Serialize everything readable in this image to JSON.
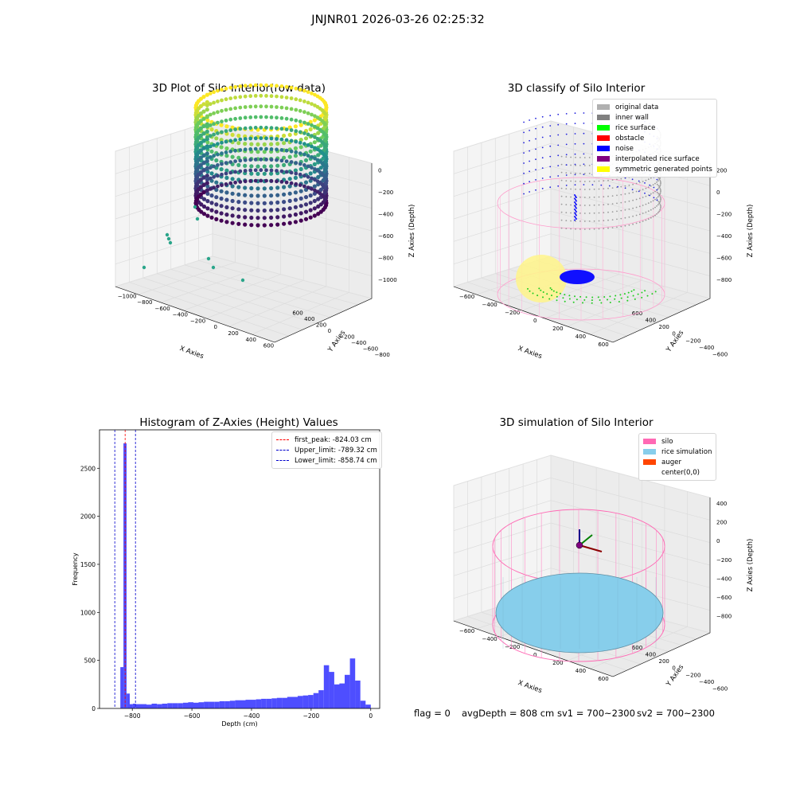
{
  "suptitle": "JNJNR01 2026-03-26 02:25:32",
  "panels": {
    "raw": {
      "title": "3D Plot of Silo Interior(row data)",
      "xlabel": "X Axies",
      "ylabel": "Y Axies",
      "zlabel": "Z Axies (Depth)",
      "xticks": [
        "−1000",
        "−800",
        "−600",
        "−400",
        "−200",
        "0",
        "200",
        "400",
        "600"
      ],
      "yticks": [
        "−800",
        "−600",
        "−400",
        "−200",
        "0",
        "200",
        "400",
        "600"
      ],
      "zticks": [
        "0",
        "−200",
        "−400",
        "−600",
        "−800",
        "−1000"
      ]
    },
    "classify": {
      "title": "3D classify of Silo Interior",
      "xlabel": "X Axies",
      "ylabel": "Y Axies",
      "zlabel": "Z Axies (Depth)",
      "xticks": [
        "−600",
        "−400",
        "−200",
        "0",
        "200",
        "400",
        "600"
      ],
      "yticks": [
        "−600",
        "−400",
        "−200",
        "0",
        "200",
        "400",
        "600"
      ],
      "zticks": [
        "200",
        "0",
        "−200",
        "−400",
        "−600",
        "−800"
      ],
      "legend": [
        {
          "label": "original data",
          "color": "#b0b0b0"
        },
        {
          "label": "inner wall",
          "color": "#808080"
        },
        {
          "label": "rice surface",
          "color": "#00ff00"
        },
        {
          "label": "obstacle",
          "color": "#ff0000"
        },
        {
          "label": "noise",
          "color": "#0000ff"
        },
        {
          "label": "interpolated rice surface",
          "color": "#800080"
        },
        {
          "label": "symmetric generated points",
          "color": "#ffff00"
        }
      ]
    },
    "histogram": {
      "title": "Histogram of Z-Axies (Height) Values",
      "xlabel": "Depth (cm)",
      "ylabel": "Frequency",
      "legend": [
        {
          "label": "first_peak: -824.03 cm",
          "color": "#ff0000"
        },
        {
          "label": "Upper_limit: -789.32 cm",
          "color": "#0000cc"
        },
        {
          "label": "Lower_limit: -858.74 cm",
          "color": "#0000cc"
        }
      ]
    },
    "simulation": {
      "title": "3D simulation of Silo Interior",
      "xlabel": "X Axies",
      "ylabel": "Y Axies",
      "zlabel": "Z Axies (Depth)",
      "xticks": [
        "−600",
        "−400",
        "−200",
        "0",
        "200",
        "400",
        "600"
      ],
      "yticks": [
        "−600",
        "−400",
        "−200",
        "0",
        "200",
        "400",
        "600"
      ],
      "zticks": [
        "400",
        "200",
        "0",
        "−200",
        "−400",
        "−600",
        "−800"
      ],
      "legend": [
        {
          "label": "silo",
          "color": "#ff69b4"
        },
        {
          "label": "rice simulation",
          "color": "#87ceeb"
        },
        {
          "label": "auger",
          "color": "#ff4500"
        },
        {
          "label": "center(0,0)",
          "color": ""
        }
      ]
    }
  },
  "footer": {
    "flag": "flag = 0",
    "avg_depth": "avgDepth = 808 cm",
    "sv1": "sv1 = 700~2300",
    "sv2": "sv2 = 700~2300"
  },
  "chart_data": [
    {
      "type": "scatter",
      "title": "3D Plot of Silo Interior(row data)",
      "xlabel": "X Axies",
      "ylabel": "Y Axies",
      "zlabel": "Z Axies (Depth)",
      "xlim": [
        -1000,
        600
      ],
      "ylim": [
        -800,
        600
      ],
      "zlim": [
        -1100,
        0
      ],
      "colormap": "viridis",
      "description_of_points": "cylindrical silo wall point cloud, radius ~700, depth 0 to ~-1050"
    },
    {
      "type": "scatter",
      "title": "3D classify of Silo Interior",
      "xlim": [
        -650,
        650
      ],
      "ylim": [
        -650,
        650
      ],
      "zlim": [
        -900,
        250
      ],
      "series": [
        {
          "name": "original data"
        },
        {
          "name": "inner wall"
        },
        {
          "name": "rice surface"
        },
        {
          "name": "obstacle"
        },
        {
          "name": "noise"
        },
        {
          "name": "interpolated rice surface"
        },
        {
          "name": "symmetric generated points"
        }
      ]
    },
    {
      "type": "bar",
      "title": "Histogram of Z-Axies (Height) Values",
      "xlabel": "Depth (cm)",
      "ylabel": "Frequency",
      "xlim": [
        -910,
        30
      ],
      "ylim": [
        0,
        2900
      ],
      "yticks": [
        0,
        500,
        1000,
        1500,
        2000,
        2500
      ],
      "xticks": [
        -800,
        -600,
        -400,
        -200,
        0
      ],
      "bin_edges": [
        -840,
        -829.5,
        -819,
        -808.5,
        -798,
        -787.5,
        -770,
        -752.5,
        -735,
        -717.5,
        -700,
        -682.5,
        -665,
        -647.5,
        -630,
        -612.5,
        -595,
        -577.5,
        -560,
        -542.5,
        -525,
        -507.5,
        -490,
        -472.5,
        -455,
        -437.5,
        -420,
        -402.5,
        -385,
        -367.5,
        -350,
        -332.5,
        -315,
        -297.5,
        -280,
        -262.5,
        -245,
        -227.5,
        -210,
        -192.5,
        -175,
        -157.5,
        -140,
        -122.5,
        -105,
        -87.5,
        -70,
        -52.5,
        -35,
        -17.5,
        0
      ],
      "values": [
        430,
        2760,
        155,
        45,
        50,
        45,
        45,
        40,
        50,
        45,
        50,
        55,
        55,
        55,
        60,
        65,
        60,
        65,
        70,
        70,
        70,
        75,
        75,
        80,
        85,
        85,
        90,
        90,
        95,
        100,
        100,
        105,
        110,
        110,
        120,
        120,
        130,
        135,
        140,
        160,
        190,
        450,
        380,
        250,
        260,
        350,
        520,
        290,
        80,
        40
      ],
      "lines": [
        {
          "name": "first_peak: -824.03 cm",
          "x": -824.03,
          "color": "#ff0000"
        },
        {
          "name": "Upper_limit: -789.32 cm",
          "x": -789.32,
          "color": "#0000cc"
        },
        {
          "name": "Lower_limit: -858.74 cm",
          "x": -858.74,
          "color": "#0000cc"
        }
      ]
    },
    {
      "type": "scatter",
      "title": "3D simulation of Silo Interior",
      "xlim": [
        -650,
        650
      ],
      "ylim": [
        -650,
        650
      ],
      "zlim": [
        -900,
        450
      ],
      "series": [
        {
          "name": "silo"
        },
        {
          "name": "rice simulation"
        },
        {
          "name": "auger"
        },
        {
          "name": "center(0,0)"
        }
      ]
    }
  ]
}
